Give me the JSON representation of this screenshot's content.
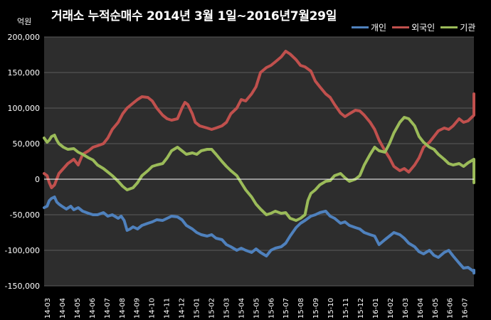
{
  "chart_data": {
    "type": "line",
    "title": "거래소  누적순매수 2014년 3월 1일~2016년7월29일",
    "unit_label": "억원",
    "ylim": [
      -150000,
      200000
    ],
    "y_ticks": [
      -150000,
      -100000,
      -50000,
      0,
      50000,
      100000,
      150000,
      200000
    ],
    "y_tick_labels": [
      "-150,000",
      "-100,000",
      "-50,000",
      "0",
      "50,000",
      "100,000",
      "150,000",
      "200,000"
    ],
    "x_tick_labels": [
      "14-03",
      "14-04",
      "14-05",
      "14-06",
      "14-07",
      "14-08",
      "14-09",
      "14-10",
      "14-11",
      "14-12",
      "15-01",
      "15-02",
      "15-03",
      "15-04",
      "15-05",
      "15-06",
      "15-07",
      "15-08",
      "15-09",
      "15-10",
      "15-11",
      "15-12",
      "16-01",
      "16-02",
      "16-03",
      "16-04",
      "16-05",
      "16-06",
      "16-07"
    ],
    "x_range": [
      0,
      29.0
    ],
    "grid": true,
    "legend_position": "top-right",
    "series": [
      {
        "name": "개인",
        "color": "#4f81bd",
        "points": [
          [
            0.0,
            -40000
          ],
          [
            0.2,
            -38000
          ],
          [
            0.35,
            -30000
          ],
          [
            0.5,
            -27000
          ],
          [
            0.7,
            -25000
          ],
          [
            0.85,
            -32000
          ],
          [
            1.0,
            -35000
          ],
          [
            1.2,
            -38000
          ],
          [
            1.5,
            -42000
          ],
          [
            1.8,
            -38000
          ],
          [
            2.0,
            -43000
          ],
          [
            2.3,
            -40000
          ],
          [
            2.6,
            -45000
          ],
          [
            3.0,
            -48000
          ],
          [
            3.3,
            -50000
          ],
          [
            3.6,
            -50000
          ],
          [
            4.0,
            -47000
          ],
          [
            4.3,
            -52000
          ],
          [
            4.6,
            -50000
          ],
          [
            5.0,
            -55000
          ],
          [
            5.2,
            -52000
          ],
          [
            5.4,
            -58000
          ],
          [
            5.6,
            -72000
          ],
          [
            5.8,
            -70000
          ],
          [
            6.0,
            -67000
          ],
          [
            6.3,
            -70000
          ],
          [
            6.6,
            -65000
          ],
          [
            7.0,
            -62000
          ],
          [
            7.3,
            -60000
          ],
          [
            7.6,
            -57000
          ],
          [
            8.0,
            -58000
          ],
          [
            8.3,
            -55000
          ],
          [
            8.6,
            -52000
          ],
          [
            9.0,
            -53000
          ],
          [
            9.3,
            -57000
          ],
          [
            9.6,
            -65000
          ],
          [
            10.0,
            -70000
          ],
          [
            10.3,
            -75000
          ],
          [
            10.6,
            -78000
          ],
          [
            11.0,
            -80000
          ],
          [
            11.3,
            -78000
          ],
          [
            11.6,
            -83000
          ],
          [
            12.0,
            -85000
          ],
          [
            12.3,
            -92000
          ],
          [
            12.6,
            -95000
          ],
          [
            13.0,
            -100000
          ],
          [
            13.3,
            -97000
          ],
          [
            13.6,
            -100000
          ],
          [
            14.0,
            -103000
          ],
          [
            14.3,
            -98000
          ],
          [
            14.6,
            -103000
          ],
          [
            15.0,
            -108000
          ],
          [
            15.3,
            -100000
          ],
          [
            15.6,
            -97000
          ],
          [
            16.0,
            -95000
          ],
          [
            16.3,
            -90000
          ],
          [
            16.6,
            -80000
          ],
          [
            17.0,
            -68000
          ],
          [
            17.3,
            -62000
          ],
          [
            17.6,
            -58000
          ],
          [
            18.0,
            -52000
          ],
          [
            18.3,
            -50000
          ],
          [
            18.6,
            -47000
          ],
          [
            19.0,
            -45000
          ],
          [
            19.3,
            -52000
          ],
          [
            19.6,
            -55000
          ],
          [
            20.0,
            -62000
          ],
          [
            20.3,
            -60000
          ],
          [
            20.6,
            -65000
          ],
          [
            21.0,
            -68000
          ],
          [
            21.3,
            -70000
          ],
          [
            21.6,
            -75000
          ],
          [
            22.0,
            -78000
          ],
          [
            22.3,
            -80000
          ],
          [
            22.6,
            -92000
          ],
          [
            23.0,
            -85000
          ],
          [
            23.3,
            -80000
          ],
          [
            23.6,
            -75000
          ],
          [
            24.0,
            -78000
          ],
          [
            24.3,
            -83000
          ],
          [
            24.6,
            -90000
          ],
          [
            25.0,
            -95000
          ],
          [
            25.3,
            -102000
          ],
          [
            25.6,
            -105000
          ],
          [
            26.0,
            -100000
          ],
          [
            26.3,
            -107000
          ],
          [
            26.6,
            -110000
          ],
          [
            27.0,
            -103000
          ],
          [
            27.3,
            -100000
          ],
          [
            27.6,
            -108000
          ],
          [
            28.0,
            -118000
          ],
          [
            28.3,
            -125000
          ],
          [
            28.6,
            -124000
          ],
          [
            29.0,
            -130000
          ],
          [
            29.3,
            -128000
          ],
          [
            29.6,
            -132000
          ]
        ]
      },
      {
        "name": "외국인",
        "color": "#c0504d",
        "points": [
          [
            0.0,
            8000
          ],
          [
            0.2,
            5000
          ],
          [
            0.35,
            -5000
          ],
          [
            0.5,
            -12000
          ],
          [
            0.7,
            -8000
          ],
          [
            0.85,
            0
          ],
          [
            1.0,
            8000
          ],
          [
            1.3,
            15000
          ],
          [
            1.6,
            22000
          ],
          [
            2.0,
            28000
          ],
          [
            2.3,
            20000
          ],
          [
            2.6,
            35000
          ],
          [
            3.0,
            40000
          ],
          [
            3.3,
            45000
          ],
          [
            3.6,
            47000
          ],
          [
            4.0,
            50000
          ],
          [
            4.3,
            58000
          ],
          [
            4.6,
            70000
          ],
          [
            5.0,
            80000
          ],
          [
            5.3,
            92000
          ],
          [
            5.6,
            100000
          ],
          [
            6.0,
            107000
          ],
          [
            6.3,
            112000
          ],
          [
            6.6,
            116000
          ],
          [
            7.0,
            115000
          ],
          [
            7.3,
            110000
          ],
          [
            7.6,
            100000
          ],
          [
            8.0,
            90000
          ],
          [
            8.3,
            85000
          ],
          [
            8.6,
            83000
          ],
          [
            9.0,
            85000
          ],
          [
            9.3,
            100000
          ],
          [
            9.5,
            108000
          ],
          [
            9.7,
            105000
          ],
          [
            10.0,
            92000
          ],
          [
            10.2,
            80000
          ],
          [
            10.5,
            75000
          ],
          [
            11.0,
            72000
          ],
          [
            11.3,
            70000
          ],
          [
            11.6,
            72000
          ],
          [
            12.0,
            75000
          ],
          [
            12.3,
            80000
          ],
          [
            12.6,
            92000
          ],
          [
            13.0,
            100000
          ],
          [
            13.3,
            112000
          ],
          [
            13.6,
            110000
          ],
          [
            14.0,
            120000
          ],
          [
            14.3,
            130000
          ],
          [
            14.6,
            150000
          ],
          [
            15.0,
            157000
          ],
          [
            15.3,
            160000
          ],
          [
            15.6,
            165000
          ],
          [
            16.0,
            172000
          ],
          [
            16.3,
            180000
          ],
          [
            16.6,
            176000
          ],
          [
            17.0,
            168000
          ],
          [
            17.3,
            160000
          ],
          [
            17.6,
            158000
          ],
          [
            18.0,
            152000
          ],
          [
            18.3,
            138000
          ],
          [
            18.6,
            130000
          ],
          [
            19.0,
            120000
          ],
          [
            19.3,
            115000
          ],
          [
            19.6,
            105000
          ],
          [
            20.0,
            93000
          ],
          [
            20.3,
            88000
          ],
          [
            20.6,
            92000
          ],
          [
            21.0,
            97000
          ],
          [
            21.3,
            96000
          ],
          [
            21.6,
            90000
          ],
          [
            22.0,
            80000
          ],
          [
            22.3,
            70000
          ],
          [
            22.6,
            55000
          ],
          [
            23.0,
            40000
          ],
          [
            23.3,
            30000
          ],
          [
            23.6,
            18000
          ],
          [
            24.0,
            12000
          ],
          [
            24.3,
            15000
          ],
          [
            24.6,
            10000
          ],
          [
            25.0,
            20000
          ],
          [
            25.3,
            30000
          ],
          [
            25.6,
            45000
          ],
          [
            26.0,
            52000
          ],
          [
            26.3,
            60000
          ],
          [
            26.6,
            68000
          ],
          [
            27.0,
            72000
          ],
          [
            27.3,
            70000
          ],
          [
            27.6,
            75000
          ],
          [
            28.0,
            85000
          ],
          [
            28.3,
            80000
          ],
          [
            28.6,
            82000
          ],
          [
            29.0,
            90000
          ],
          [
            29.3,
            100000
          ],
          [
            29.6,
            110000
          ],
          [
            29.9,
            120000
          ]
        ]
      },
      {
        "name": "기관",
        "color": "#9bbb59",
        "points": [
          [
            0.0,
            58000
          ],
          [
            0.2,
            52000
          ],
          [
            0.35,
            55000
          ],
          [
            0.5,
            60000
          ],
          [
            0.7,
            62000
          ],
          [
            0.85,
            55000
          ],
          [
            1.0,
            50000
          ],
          [
            1.3,
            45000
          ],
          [
            1.6,
            42000
          ],
          [
            2.0,
            43000
          ],
          [
            2.3,
            38000
          ],
          [
            2.6,
            35000
          ],
          [
            3.0,
            30000
          ],
          [
            3.3,
            27000
          ],
          [
            3.6,
            20000
          ],
          [
            4.0,
            15000
          ],
          [
            4.3,
            10000
          ],
          [
            4.6,
            5000
          ],
          [
            5.0,
            -3000
          ],
          [
            5.3,
            -10000
          ],
          [
            5.6,
            -15000
          ],
          [
            6.0,
            -12000
          ],
          [
            6.3,
            -5000
          ],
          [
            6.6,
            5000
          ],
          [
            7.0,
            12000
          ],
          [
            7.3,
            18000
          ],
          [
            7.6,
            20000
          ],
          [
            8.0,
            22000
          ],
          [
            8.3,
            30000
          ],
          [
            8.6,
            40000
          ],
          [
            9.0,
            45000
          ],
          [
            9.3,
            40000
          ],
          [
            9.6,
            35000
          ],
          [
            10.0,
            37000
          ],
          [
            10.3,
            35000
          ],
          [
            10.6,
            40000
          ],
          [
            11.0,
            42000
          ],
          [
            11.3,
            42000
          ],
          [
            11.6,
            35000
          ],
          [
            12.0,
            25000
          ],
          [
            12.3,
            18000
          ],
          [
            12.6,
            12000
          ],
          [
            13.0,
            5000
          ],
          [
            13.3,
            -5000
          ],
          [
            13.6,
            -15000
          ],
          [
            14.0,
            -25000
          ],
          [
            14.3,
            -35000
          ],
          [
            14.6,
            -42000
          ],
          [
            15.0,
            -50000
          ],
          [
            15.3,
            -48000
          ],
          [
            15.6,
            -45000
          ],
          [
            16.0,
            -48000
          ],
          [
            16.3,
            -47000
          ],
          [
            16.6,
            -55000
          ],
          [
            17.0,
            -58000
          ],
          [
            17.3,
            -55000
          ],
          [
            17.6,
            -50000
          ],
          [
            17.8,
            -30000
          ],
          [
            18.0,
            -20000
          ],
          [
            18.3,
            -15000
          ],
          [
            18.6,
            -8000
          ],
          [
            19.0,
            -3000
          ],
          [
            19.3,
            -2000
          ],
          [
            19.6,
            5000
          ],
          [
            20.0,
            8000
          ],
          [
            20.3,
            2000
          ],
          [
            20.6,
            -3000
          ],
          [
            21.0,
            0
          ],
          [
            21.3,
            5000
          ],
          [
            21.6,
            20000
          ],
          [
            22.0,
            35000
          ],
          [
            22.3,
            45000
          ],
          [
            22.6,
            40000
          ],
          [
            23.0,
            38000
          ],
          [
            23.3,
            50000
          ],
          [
            23.6,
            65000
          ],
          [
            24.0,
            80000
          ],
          [
            24.3,
            87000
          ],
          [
            24.6,
            85000
          ],
          [
            25.0,
            75000
          ],
          [
            25.3,
            60000
          ],
          [
            25.6,
            52000
          ],
          [
            26.0,
            45000
          ],
          [
            26.3,
            42000
          ],
          [
            26.6,
            35000
          ],
          [
            27.0,
            28000
          ],
          [
            27.3,
            22000
          ],
          [
            27.6,
            20000
          ],
          [
            28.0,
            22000
          ],
          [
            28.3,
            18000
          ],
          [
            28.6,
            23000
          ],
          [
            29.0,
            28000
          ],
          [
            29.3,
            18000
          ],
          [
            29.6,
            5000
          ],
          [
            29.9,
            -5000
          ]
        ]
      }
    ]
  }
}
